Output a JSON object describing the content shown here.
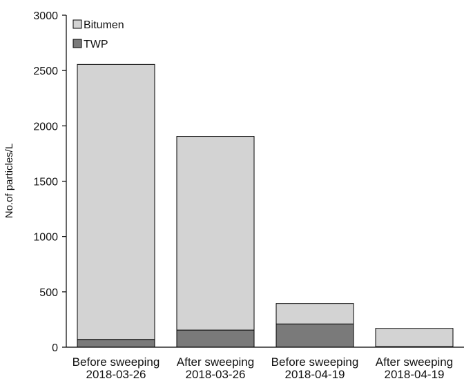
{
  "chart_data": {
    "type": "bar",
    "stacked": true,
    "categories": [
      [
        "Before sweeping",
        "2018-03-26"
      ],
      [
        "After sweeping",
        "2018-03-26"
      ],
      [
        "Before sweeping",
        "2018-04-19"
      ],
      [
        "After sweeping",
        "2018-04-19"
      ]
    ],
    "series": [
      {
        "name": "TWP",
        "color": "#7a7a7a",
        "values": [
          70,
          155,
          210,
          5
        ]
      },
      {
        "name": "Bitumen",
        "color": "#d3d3d3",
        "values": [
          2485,
          1750,
          185,
          165
        ]
      }
    ],
    "legend_order": [
      "Bitumen",
      "TWP"
    ],
    "legend_position": "top-left",
    "xlabel": "",
    "ylabel": "No.of particles/L",
    "ylim": [
      0,
      3000
    ],
    "yticks": [
      0,
      500,
      1000,
      1500,
      2000,
      2500,
      3000
    ],
    "grid": false
  }
}
